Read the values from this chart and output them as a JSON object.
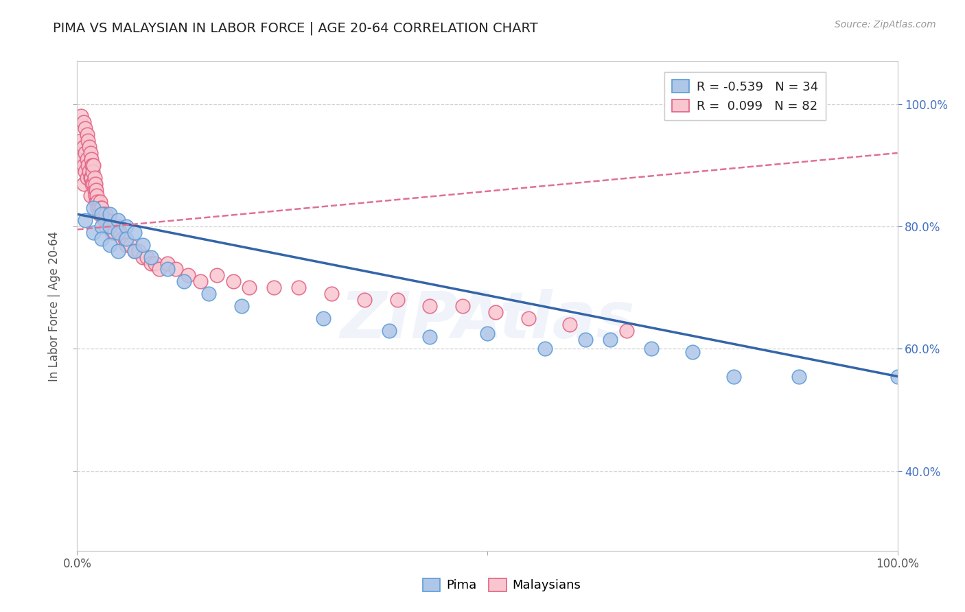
{
  "title": "PIMA VS MALAYSIAN IN LABOR FORCE | AGE 20-64 CORRELATION CHART",
  "source": "Source: ZipAtlas.com",
  "ylabel": "In Labor Force | Age 20-64",
  "xlim": [
    0.0,
    1.0
  ],
  "ylim": [
    0.27,
    1.07
  ],
  "background_color": "#ffffff",
  "grid_color": "#d0d0d0",
  "pima_color": "#aec6e8",
  "pima_edge_color": "#5b9bd5",
  "malaysian_color": "#f9c6d0",
  "malaysian_edge_color": "#e06080",
  "pima_line_color": "#3465a8",
  "malaysian_line_color": "#e07090",
  "watermark": "ZIPAtlas",
  "pima_x": [
    0.01,
    0.02,
    0.02,
    0.03,
    0.03,
    0.03,
    0.04,
    0.04,
    0.04,
    0.05,
    0.05,
    0.05,
    0.06,
    0.06,
    0.07,
    0.07,
    0.08,
    0.09,
    0.11,
    0.13,
    0.16,
    0.2,
    0.3,
    0.38,
    0.43,
    0.5,
    0.57,
    0.62,
    0.65,
    0.7,
    0.75,
    0.8,
    0.88,
    1.0
  ],
  "pima_y": [
    0.81,
    0.83,
    0.79,
    0.82,
    0.8,
    0.78,
    0.82,
    0.8,
    0.77,
    0.81,
    0.79,
    0.76,
    0.8,
    0.78,
    0.79,
    0.76,
    0.77,
    0.75,
    0.73,
    0.71,
    0.69,
    0.67,
    0.65,
    0.63,
    0.62,
    0.625,
    0.6,
    0.615,
    0.615,
    0.6,
    0.595,
    0.555,
    0.555,
    0.555
  ],
  "malay_x": [
    0.005,
    0.005,
    0.005,
    0.008,
    0.008,
    0.008,
    0.008,
    0.01,
    0.01,
    0.01,
    0.012,
    0.012,
    0.012,
    0.013,
    0.013,
    0.015,
    0.015,
    0.016,
    0.016,
    0.016,
    0.017,
    0.017,
    0.018,
    0.018,
    0.019,
    0.02,
    0.02,
    0.021,
    0.021,
    0.022,
    0.022,
    0.023,
    0.023,
    0.024,
    0.025,
    0.025,
    0.026,
    0.027,
    0.028,
    0.029,
    0.03,
    0.031,
    0.032,
    0.033,
    0.034,
    0.035,
    0.036,
    0.038,
    0.04,
    0.042,
    0.044,
    0.046,
    0.05,
    0.052,
    0.055,
    0.058,
    0.06,
    0.065,
    0.07,
    0.075,
    0.08,
    0.085,
    0.09,
    0.095,
    0.1,
    0.11,
    0.12,
    0.135,
    0.15,
    0.17,
    0.19,
    0.21,
    0.24,
    0.27,
    0.31,
    0.35,
    0.39,
    0.43,
    0.47,
    0.51,
    0.55,
    0.6,
    0.67
  ],
  "malay_y": [
    0.98,
    0.94,
    0.91,
    0.97,
    0.93,
    0.9,
    0.87,
    0.96,
    0.92,
    0.89,
    0.95,
    0.91,
    0.88,
    0.94,
    0.9,
    0.93,
    0.89,
    0.92,
    0.88,
    0.85,
    0.91,
    0.88,
    0.9,
    0.87,
    0.89,
    0.9,
    0.87,
    0.88,
    0.86,
    0.87,
    0.85,
    0.86,
    0.84,
    0.85,
    0.84,
    0.83,
    0.83,
    0.82,
    0.84,
    0.83,
    0.83,
    0.82,
    0.82,
    0.81,
    0.81,
    0.82,
    0.81,
    0.8,
    0.8,
    0.79,
    0.79,
    0.79,
    0.8,
    0.79,
    0.78,
    0.78,
    0.77,
    0.77,
    0.76,
    0.76,
    0.75,
    0.75,
    0.74,
    0.74,
    0.73,
    0.74,
    0.73,
    0.72,
    0.71,
    0.72,
    0.71,
    0.7,
    0.7,
    0.7,
    0.69,
    0.68,
    0.68,
    0.67,
    0.67,
    0.66,
    0.65,
    0.64,
    0.63
  ]
}
